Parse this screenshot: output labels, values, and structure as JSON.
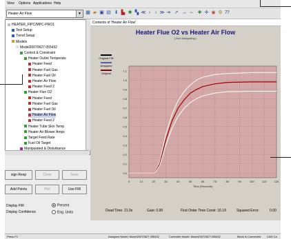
{
  "menu": [
    "View",
    "Options",
    "Applications",
    "Help"
  ],
  "toolbar": {
    "combo_value": "Heater Air Flow"
  },
  "tree": {
    "items": [
      {
        "label": "HEATER_FIPC/MPC-PRO1",
        "indent": 0,
        "color": "#c0c0c0"
      },
      {
        "label": "Test Setup",
        "indent": 1,
        "color": "#3060c0"
      },
      {
        "label": "Trend Setup",
        "indent": 1,
        "color": "#3060c0"
      },
      {
        "label": "Models",
        "indent": 1,
        "color": "#c0a030"
      },
      {
        "label": "Model20070627 055432",
        "indent": 2,
        "color": "#e0e0e0"
      },
      {
        "label": "Control & Constraint",
        "indent": 3,
        "color": "#30a030"
      },
      {
        "label": "Heater Outlet Temperatu",
        "indent": 4,
        "color": "#30a030"
      },
      {
        "label": "Heater Feed",
        "indent": 5,
        "color": "#c03030"
      },
      {
        "label": "Heater Fuel Gas",
        "indent": 5,
        "color": "#c03030"
      },
      {
        "label": "Heater Fuel Oil",
        "indent": 5,
        "color": "#c03030"
      },
      {
        "label": "Heater Air Flow",
        "indent": 5,
        "color": "#c03030"
      },
      {
        "label": "Heater Feed 2",
        "indent": 5,
        "color": "#c03030"
      },
      {
        "label": "Heater Flue O2",
        "indent": 4,
        "color": "#30a030"
      },
      {
        "label": "Heater Feed",
        "indent": 5,
        "color": "#c03030"
      },
      {
        "label": "Heater Fuel Gas",
        "indent": 5,
        "color": "#c03030"
      },
      {
        "label": "Heater Fuel Oil",
        "indent": 5,
        "color": "#c03030"
      },
      {
        "label": "Heater Air Flow",
        "indent": 5,
        "color": "#c03030",
        "selected": true
      },
      {
        "label": "Heater Feed 2",
        "indent": 5,
        "color": "#c03030"
      },
      {
        "label": "Heater Tube Skin Temp",
        "indent": 4,
        "color": "#30a030"
      },
      {
        "label": "Heater Air Blower Amps",
        "indent": 4,
        "color": "#30a030"
      },
      {
        "label": "Target Feed Rate",
        "indent": 4,
        "color": "#30a030"
      },
      {
        "label": "Fuel Oil Target",
        "indent": 4,
        "color": "#30a030"
      },
      {
        "label": "Manipulated & Disturbance",
        "indent": 3,
        "color": "#a030a0"
      }
    ]
  },
  "buttons": {
    "reset_model_loop": "sign Resp",
    "clear": "Clear",
    "save": "Save",
    "add_points": "Add Points",
    "plot": "Plot",
    "use_fir": "Use FIR"
  },
  "display_options": {
    "display_fir_label": "Display FIR",
    "percent_label": "Percent",
    "confidence_label": "Display Confidence",
    "eng_units_label": "Eng. Units"
  },
  "content_header": "Contents of 'Heater Air Flow'",
  "chart_data": {
    "type": "line",
    "title": "Heater Flue O2 vs Heater Air Flow",
    "subtitle": "( Non-Integrating )",
    "xlabel": "Time (Seconds)",
    "ylabel": "",
    "xlim": [
      0,
      120
    ],
    "ylim": [
      -0.05,
      1.15
    ],
    "x_ticks": [
      0,
      10,
      20,
      30,
      40,
      50,
      60,
      70,
      80,
      90,
      100,
      110,
      120
    ],
    "y_ticks": [
      -0.0,
      0.1,
      0.2,
      0.3,
      0.4,
      0.5,
      0.6,
      0.7,
      0.8,
      0.9,
      1.0,
      1.1
    ],
    "grid": true,
    "legend_position": "left",
    "series": [
      {
        "name": "Original FIR",
        "color": "#000000"
      },
      {
        "name": "Designed",
        "color": "#5060a0"
      },
      {
        "name": "Original",
        "color": "#8a0000"
      }
    ],
    "curves": [
      {
        "role": "upper confidence",
        "color": "#ffffff",
        "points": [
          [
            0,
            0
          ],
          [
            21,
            0
          ],
          [
            25,
            0.12
          ],
          [
            30,
            0.42
          ],
          [
            35,
            0.63
          ],
          [
            40,
            0.78
          ],
          [
            45,
            0.88
          ],
          [
            50,
            0.95
          ],
          [
            55,
            1.0
          ],
          [
            60,
            1.03
          ],
          [
            70,
            1.06
          ],
          [
            80,
            1.07
          ],
          [
            100,
            1.08
          ],
          [
            120,
            1.08
          ]
        ]
      },
      {
        "role": "mean",
        "color": "#9a0000",
        "points": [
          [
            0,
            0
          ],
          [
            21,
            0
          ],
          [
            25,
            0.1
          ],
          [
            30,
            0.36
          ],
          [
            35,
            0.56
          ],
          [
            40,
            0.7
          ],
          [
            45,
            0.79
          ],
          [
            50,
            0.86
          ],
          [
            55,
            0.9
          ],
          [
            60,
            0.93
          ],
          [
            70,
            0.96
          ],
          [
            80,
            0.975
          ],
          [
            100,
            0.98
          ],
          [
            120,
            0.98
          ]
        ]
      },
      {
        "role": "lower confidence",
        "color": "#ffffff",
        "points": [
          [
            0,
            0
          ],
          [
            21,
            0
          ],
          [
            25,
            0.08
          ],
          [
            30,
            0.3
          ],
          [
            35,
            0.48
          ],
          [
            40,
            0.61
          ],
          [
            45,
            0.7
          ],
          [
            50,
            0.76
          ],
          [
            55,
            0.8
          ],
          [
            60,
            0.83
          ],
          [
            70,
            0.86
          ],
          [
            80,
            0.875
          ],
          [
            100,
            0.88
          ],
          [
            120,
            0.88
          ]
        ]
      }
    ]
  },
  "stats": {
    "dead_time": "Dead Time: 21.0s",
    "gain": "Gain: 0.99",
    "first_order_time_const": "First Order Time Const: 16.19",
    "squared_error": "Squared Error:",
    "squared_error_value": "0.00"
  },
  "status": {
    "left": "Press F1",
    "assigned_model": "Assigned Model: Model20070627 055432",
    "controller_model": "Controller Model: Model20070627 055432",
    "block": "Block is Connected",
    "can": "CAN Ca"
  }
}
